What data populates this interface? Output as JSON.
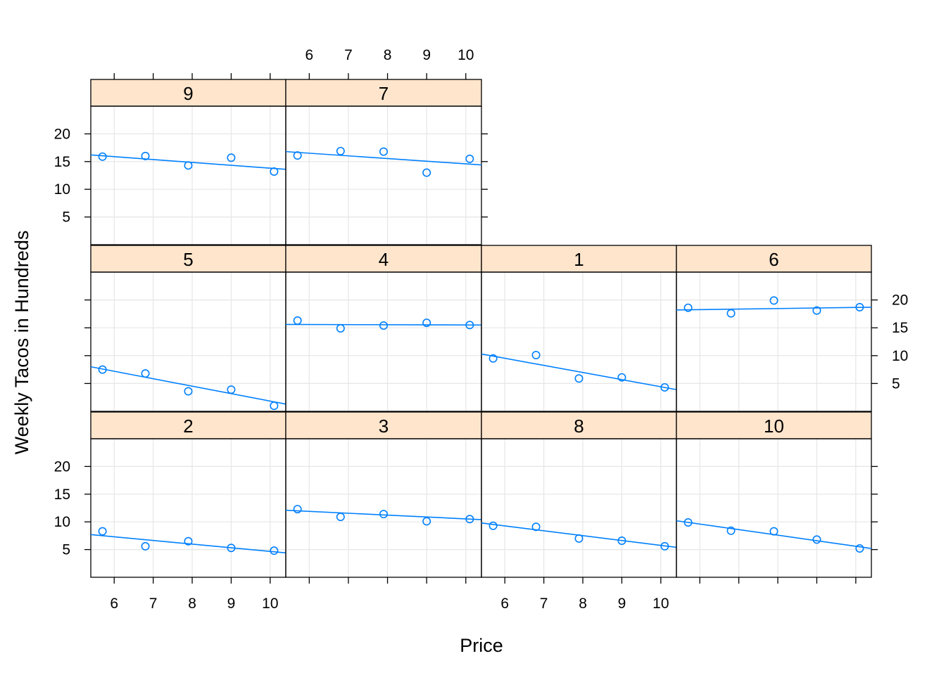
{
  "chart_data": {
    "type": "scatter",
    "xlabel": "Price",
    "ylabel": "Weekly Tacos in Hundreds",
    "xlim": [
      5.4,
      10.4
    ],
    "ylim": [
      0,
      25
    ],
    "x_ticks": [
      6,
      7,
      8,
      9,
      10
    ],
    "y_ticks": [
      5,
      10,
      15,
      20
    ],
    "x_tick_labels": [
      "6",
      "7",
      "8",
      "9",
      "10"
    ],
    "y_tick_labels": [
      "5",
      "10",
      "15",
      "20"
    ],
    "grid": true,
    "colors": {
      "points": "#0080ff",
      "fit_line": "#0080ff",
      "strip_fill": "#ffe5cc",
      "grid": "#e6e6e6",
      "border": "#000000"
    },
    "x": [
      5.7,
      6.8,
      7.9,
      9.0,
      10.1
    ],
    "panels": [
      {
        "label": "2",
        "y": [
          8.3,
          5.6,
          6.5,
          5.3,
          4.8
        ],
        "fit": [
          7.7,
          4.4
        ]
      },
      {
        "label": "3",
        "y": [
          12.3,
          10.9,
          11.4,
          10.1,
          10.5
        ],
        "fit": [
          12.1,
          10.4
        ]
      },
      {
        "label": "8",
        "y": [
          9.3,
          9.1,
          7.0,
          6.6,
          5.6
        ],
        "fit": [
          9.8,
          5.4
        ]
      },
      {
        "label": "10",
        "y": [
          9.9,
          8.4,
          8.3,
          6.8,
          5.2
        ],
        "fit": [
          10.2,
          5.2
        ]
      },
      {
        "label": "5",
        "y": [
          7.5,
          6.8,
          3.6,
          3.9,
          1.0
        ],
        "fit": [
          8.0,
          1.3
        ]
      },
      {
        "label": "4",
        "y": [
          16.3,
          14.9,
          15.4,
          15.9,
          15.5
        ],
        "fit": [
          15.6,
          15.5
        ]
      },
      {
        "label": "1",
        "y": [
          9.5,
          10.1,
          5.9,
          6.1,
          4.3
        ],
        "fit": [
          10.3,
          3.9
        ]
      },
      {
        "label": "6",
        "y": [
          18.6,
          17.6,
          19.9,
          18.1,
          18.7
        ],
        "fit": [
          18.2,
          18.7
        ]
      },
      {
        "label": "9",
        "y": [
          15.9,
          16.0,
          14.3,
          15.7,
          13.2
        ],
        "fit": [
          16.2,
          13.6
        ]
      },
      {
        "label": "7",
        "y": [
          16.1,
          16.9,
          16.8,
          13.0,
          15.5
        ],
        "fit": [
          16.8,
          14.4
        ]
      }
    ]
  }
}
